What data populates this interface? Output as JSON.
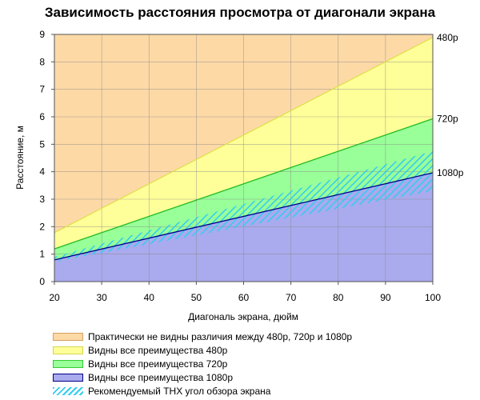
{
  "chart_data": {
    "type": "area",
    "title": "Зависимость расстояния просмотра от диагонали экрана",
    "xlabel": "Диагональ экрана, дюйм",
    "ylabel": "Расстояние, м",
    "xlim": [
      20,
      100
    ],
    "ylim": [
      0,
      9
    ],
    "x_ticks": [
      "20",
      "30",
      "40",
      "50",
      "60",
      "70",
      "80",
      "90",
      "100"
    ],
    "y_ticks": [
      "0",
      "1",
      "2",
      "3",
      "4",
      "5",
      "6",
      "7",
      "8",
      "9"
    ],
    "grid": true,
    "x": [
      20,
      100
    ],
    "series": [
      {
        "name": "480p",
        "values": [
          1.78,
          8.89
        ],
        "color": "#ffff99"
      },
      {
        "name": "720p",
        "values": [
          1.19,
          5.93
        ],
        "color": "#99ff99"
      },
      {
        "name": "1080p",
        "values": [
          0.79,
          3.96
        ],
        "color": "#aaaaee"
      }
    ],
    "thx_band": {
      "lower": [
        0.72,
        3.3
      ],
      "upper": [
        0.9,
        4.75
      ],
      "color": "#33ccee"
    },
    "background_color": "#fdd9a6",
    "line_labels": [
      "480p",
      "720p",
      "1080p"
    ],
    "legend_position": "bottom",
    "legend": [
      {
        "label": "Практически не видны различия между 480p, 720p и 1080p",
        "color": "#fdd9a6",
        "border": "#d4a060"
      },
      {
        "label": "Видны все преимущества 480p",
        "color": "#ffff99",
        "border": "#d6d650"
      },
      {
        "label": "Видны все преимущества 720p",
        "color": "#99ff99",
        "border": "#33cc33"
      },
      {
        "label": "Видны все преимущества 1080p",
        "color": "#aaaaee",
        "border": "#000088"
      },
      {
        "label": "Рекомендуемый THX угол обзора экрана",
        "color": "#33ccee",
        "border": "#33ccee",
        "hatched": true
      }
    ]
  }
}
